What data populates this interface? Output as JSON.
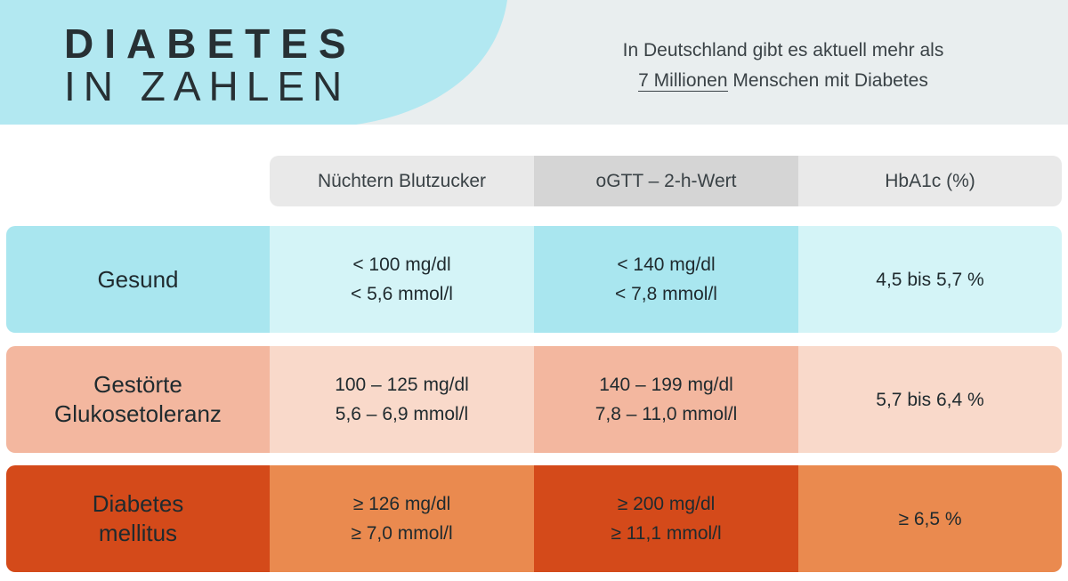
{
  "header": {
    "title_line1": "DIABETES",
    "title_line2": "IN ZAHLEN",
    "stat_line1": "In Deutschland gibt es aktuell mehr als",
    "stat_highlight": "7 Millionen",
    "stat_line2_rest": " Menschen mit Diabetes"
  },
  "columns": [
    "Nüchtern Blutzucker",
    "oGTT – 2-h-Wert",
    "HbA1c (%)"
  ],
  "rows": [
    {
      "label": [
        "Gesund"
      ],
      "fasting": [
        "< 100 mg/dl",
        "< 5,6 mmol/l"
      ],
      "ogtt": [
        "< 140 mg/dl",
        "< 7,8 mmol/l"
      ],
      "hba1c": "4,5 bis 5,7 %"
    },
    {
      "label": [
        "Gestörte",
        "Glukosetoleranz"
      ],
      "fasting": [
        "100 – 125 mg/dl",
        "5,6 – 6,9 mmol/l"
      ],
      "ogtt": [
        "140 – 199 mg/dl",
        "7,8 – 11,0 mmol/l"
      ],
      "hba1c": "5,7 bis 6,4 %"
    },
    {
      "label": [
        "Diabetes",
        "mellitus"
      ],
      "fasting": [
        "≥ 126 mg/dl",
        "≥ 7,0 mmol/l"
      ],
      "ogtt": [
        "≥ 200 mg/dl",
        "≥ 11,1 mmol/l"
      ],
      "hba1c": "≥ 6,5 %"
    }
  ],
  "colors": {
    "header_band": "#e9eeef",
    "header_blob": "#b2e8f1",
    "healthy": "#a9e6ef",
    "impaired": "#f3b79f",
    "diabetes": "#d44a1a"
  }
}
